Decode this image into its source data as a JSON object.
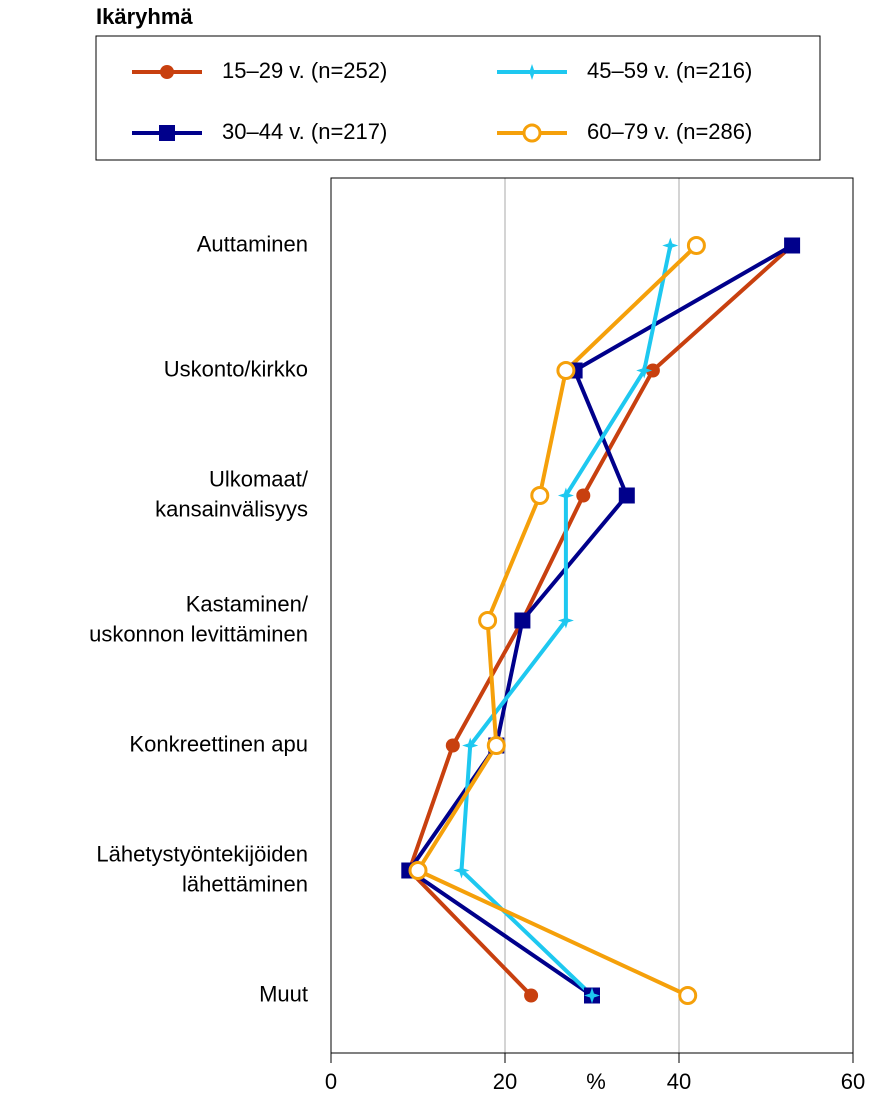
{
  "chart_data": {
    "type": "line",
    "orientation": "horizontal",
    "legend_title": "Ikäryhmä",
    "xlabel": "%",
    "categories": [
      "Auttaminen",
      "Uskonto/kirkko",
      "Ulkomaat/\nkansainvälisyys",
      "Kastaminen/\nuskonnon levittäminen",
      "Konkreettinen apu",
      "Lähetystyöntekijöiden\nlähettäminen",
      "Muut"
    ],
    "series": [
      {
        "name": "15–29 v. (n=252)",
        "color": "#c8400f",
        "marker": "circle",
        "values": [
          53,
          37,
          29,
          22,
          14,
          9,
          23
        ]
      },
      {
        "name": "30–44 v. (n=217)",
        "color": "#00008b",
        "marker": "square",
        "values": [
          53,
          28,
          34,
          22,
          19,
          9,
          30
        ]
      },
      {
        "name": "45–59 v. (n=216)",
        "color": "#1ec8f0",
        "marker": "star",
        "values": [
          39,
          36,
          27,
          27,
          16,
          15,
          30
        ]
      },
      {
        "name": "60–79 v. (n=286)",
        "color": "#f5a00a",
        "marker": "open-circle",
        "values": [
          42,
          27,
          24,
          18,
          19,
          10,
          41
        ]
      }
    ],
    "xlim": [
      0,
      60
    ],
    "xticks": [
      0,
      20,
      40,
      60
    ],
    "grid": true,
    "legend": "top"
  }
}
